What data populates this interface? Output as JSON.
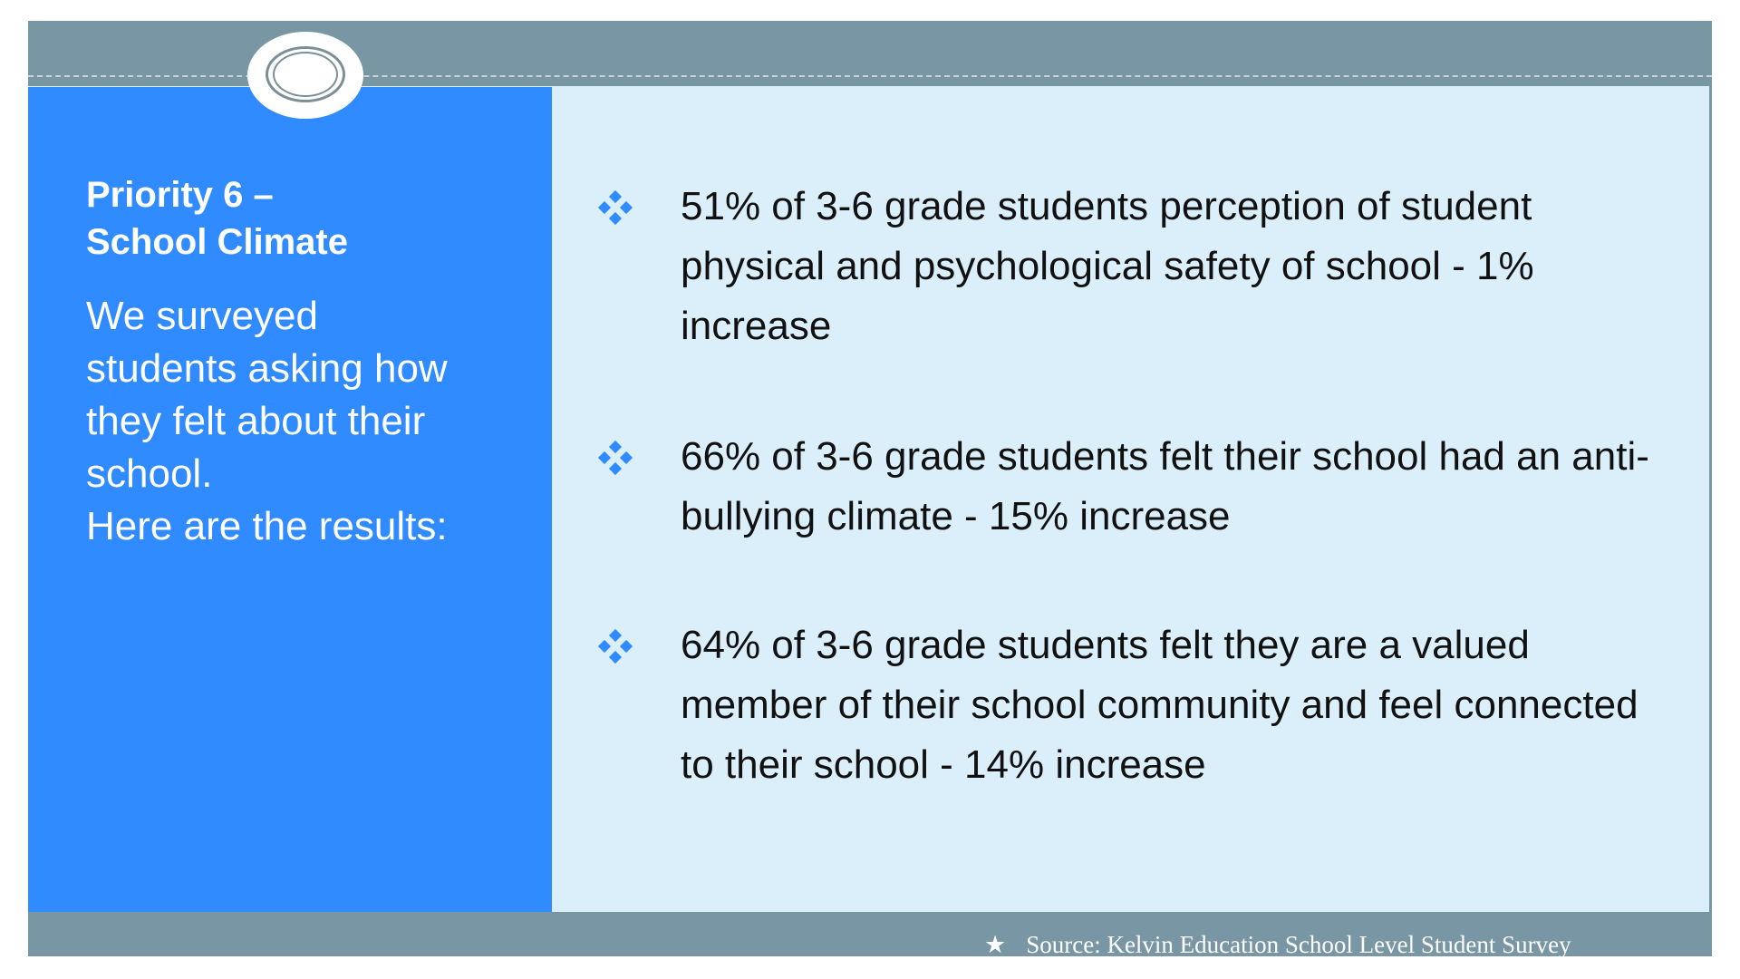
{
  "left_panel": {
    "title_line1": "Priority 6 –",
    "title_line2": "School Climate",
    "intro_lines": [
      "We surveyed",
      "students asking how",
      "they felt about their",
      "school.",
      "Here are the results:"
    ]
  },
  "bullets": [
    {
      "icon": "diamond-bullet-icon",
      "text": "51% of 3-6 grade students perception of student physical and psychological safety of school -  1% increase"
    },
    {
      "icon": "diamond-bullet-icon",
      "text": "66% of 3-6 grade students felt their school had an anti-bullying climate -  15% increase"
    },
    {
      "icon": "diamond-bullet-icon",
      "text": "64% of 3-6 grade students felt they are a valued member of their school community and feel connected to their school -  14% increase"
    }
  ],
  "footer": {
    "star": "★",
    "source": "Source: Kelvin Education School Level Student Survey"
  },
  "colors": {
    "band": "#7896a3",
    "left_panel": "#2f8bff",
    "background": "#dbeffb",
    "bullet_icon": "#2f8bff"
  }
}
